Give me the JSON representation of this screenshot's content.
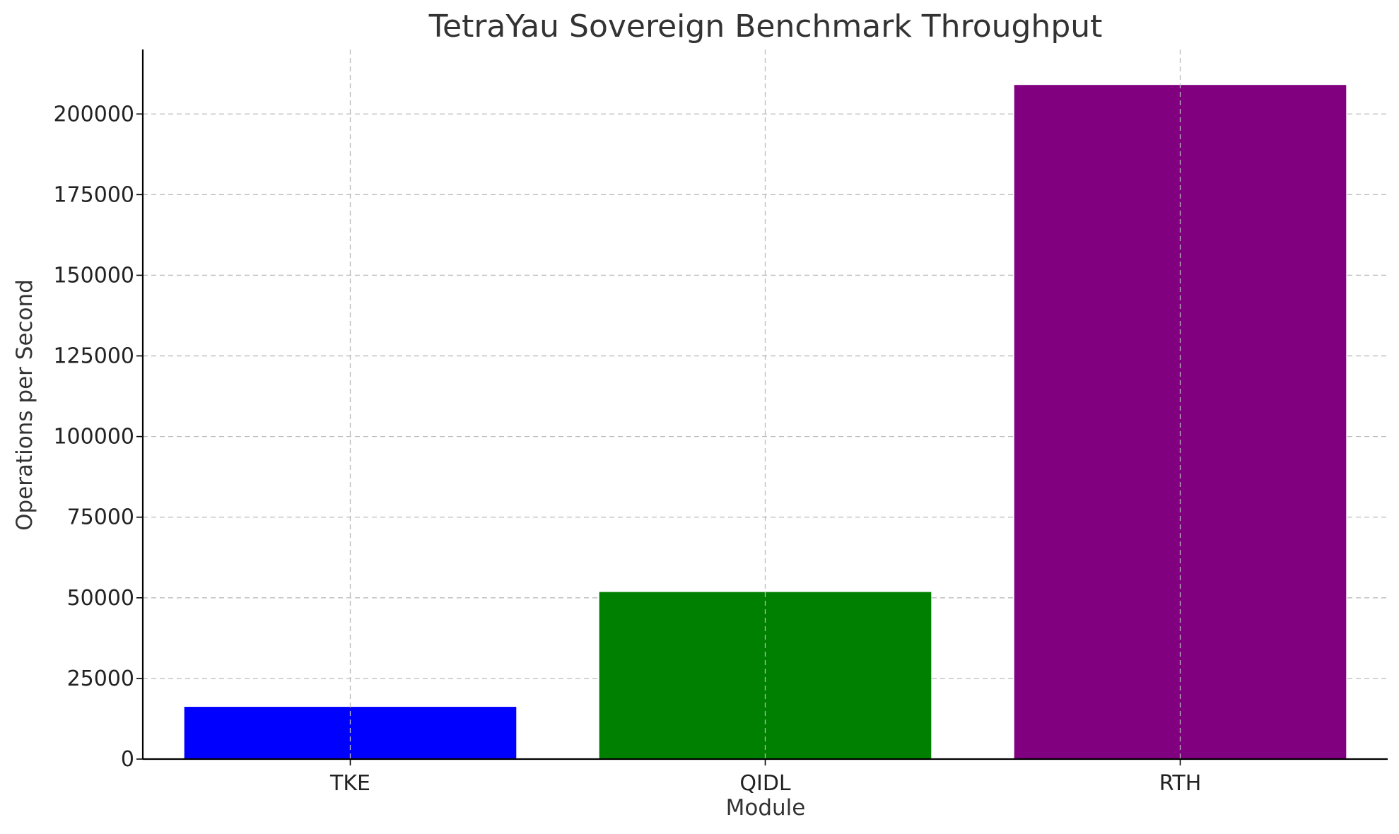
{
  "chart_data": {
    "type": "bar",
    "title": "TetraYau Sovereign Benchmark Throughput",
    "xlabel": "Module",
    "ylabel": "Operations per Second",
    "categories": [
      "TKE",
      "QIDL",
      "RTH"
    ],
    "values": [
      16200,
      51800,
      209000
    ],
    "colors": [
      "#0000ff",
      "#008000",
      "#800080"
    ],
    "ylim": [
      0,
      220000
    ],
    "yticks": [
      0,
      25000,
      50000,
      75000,
      100000,
      125000,
      150000,
      175000,
      200000
    ],
    "ytick_labels": [
      "0",
      "25000",
      "50000",
      "75000",
      "100000",
      "125000",
      "150000",
      "175000",
      "200000"
    ],
    "grid": true,
    "legend": null
  }
}
